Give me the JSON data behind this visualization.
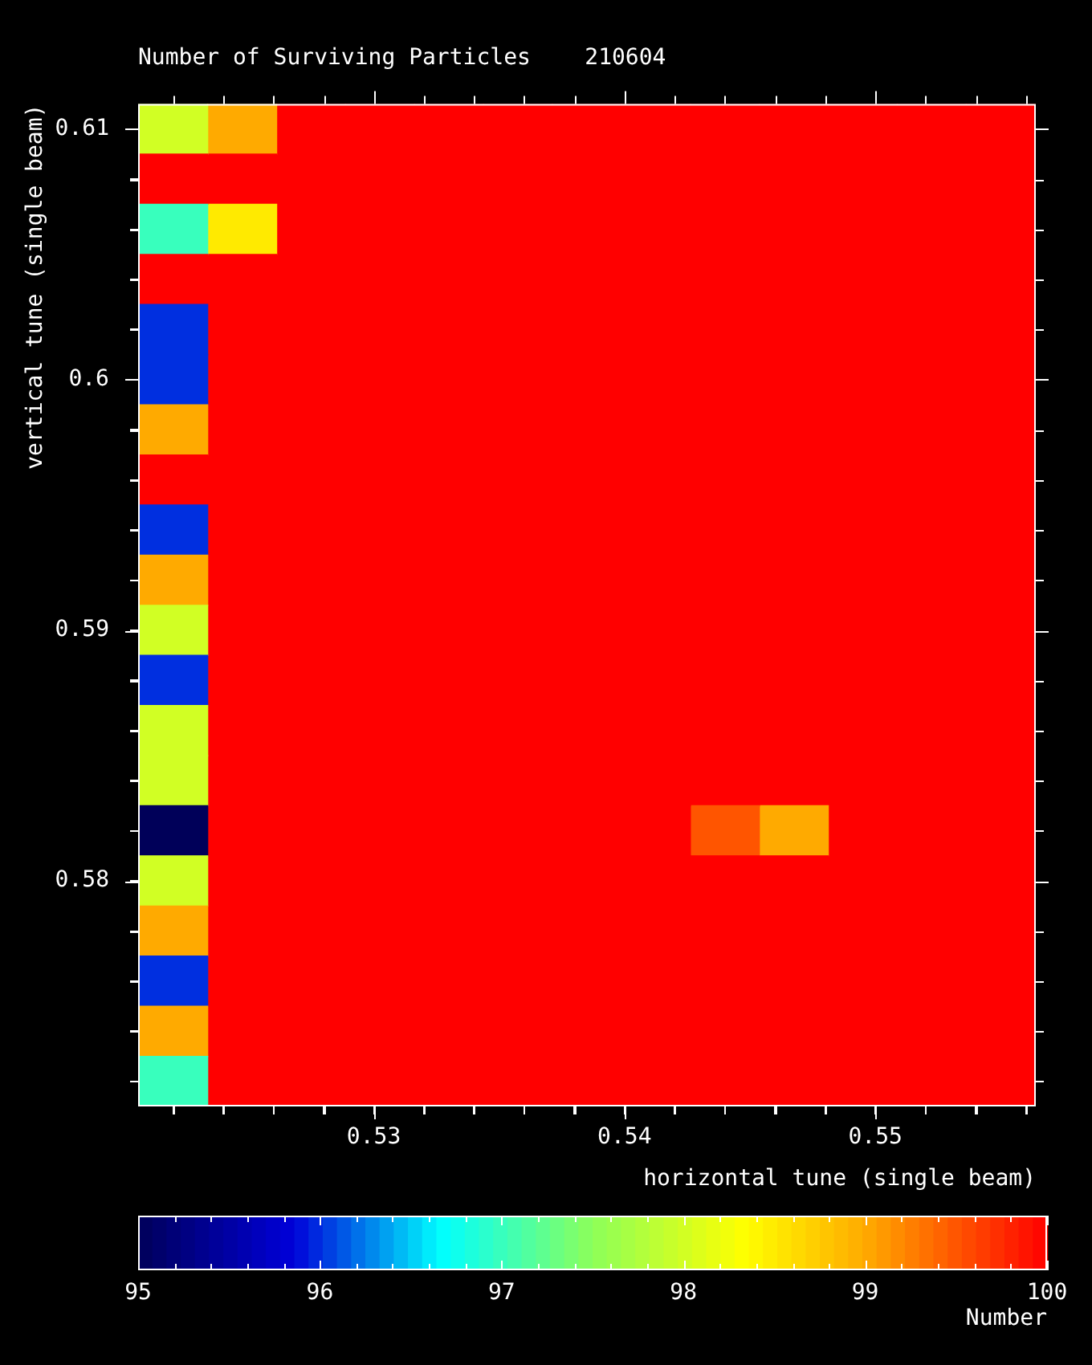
{
  "chart_data": {
    "type": "heatmap",
    "title": "Number of Surviving Particles    210604",
    "xlabel": "horizontal tune (single beam)",
    "ylabel": "vertical tune (single beam)",
    "clabel": "Number",
    "x": [
      0.522,
      0.52475,
      0.5275,
      0.53025,
      0.533,
      0.53575,
      0.5385,
      0.54125,
      0.544,
      0.54675,
      0.5495,
      0.55225,
      0.555
    ],
    "cells": [
      [
        98,
        99,
        100,
        100,
        100,
        100,
        100,
        100,
        100,
        100,
        100,
        100,
        100
      ],
      [
        100,
        100,
        100,
        100,
        100,
        100,
        100,
        100,
        100,
        100,
        100,
        100,
        100
      ],
      [
        97,
        98.5,
        100,
        100,
        100,
        100,
        100,
        100,
        100,
        100,
        100,
        100,
        100
      ],
      [
        100,
        100,
        100,
        100,
        100,
        100,
        100,
        100,
        100,
        100,
        100,
        100,
        100
      ],
      [
        96,
        100,
        100,
        100,
        100,
        100,
        100,
        100,
        100,
        100,
        100,
        100,
        100
      ],
      [
        96,
        100,
        100,
        100,
        100,
        100,
        100,
        100,
        100,
        100,
        100,
        100,
        100
      ],
      [
        99,
        100,
        100,
        100,
        100,
        100,
        100,
        100,
        100,
        100,
        100,
        100,
        100
      ],
      [
        100,
        100,
        100,
        100,
        100,
        100,
        100,
        100,
        100,
        100,
        100,
        100,
        100
      ],
      [
        96,
        100,
        100,
        100,
        100,
        100,
        100,
        100,
        100,
        100,
        100,
        100,
        100
      ],
      [
        99,
        100,
        100,
        100,
        100,
        100,
        100,
        100,
        100,
        100,
        100,
        100,
        100
      ],
      [
        98,
        100,
        100,
        100,
        100,
        100,
        100,
        100,
        100,
        100,
        100,
        100,
        100
      ],
      [
        96,
        100,
        100,
        100,
        100,
        100,
        100,
        100,
        100,
        100,
        100,
        100,
        100
      ],
      [
        98,
        100,
        100,
        100,
        100,
        100,
        100,
        100,
        100,
        100,
        100,
        100,
        100
      ],
      [
        98,
        100,
        100,
        100,
        100,
        100,
        100,
        100,
        100,
        100,
        100,
        100,
        100
      ],
      [
        95,
        100,
        100,
        100,
        100,
        100,
        100,
        100,
        99.5,
        99,
        100,
        100,
        100
      ],
      [
        98,
        100,
        100,
        100,
        100,
        100,
        100,
        100,
        100,
        100,
        100,
        100,
        100
      ],
      [
        99,
        100,
        100,
        100,
        100,
        100,
        100,
        100,
        100,
        100,
        100,
        100,
        100
      ],
      [
        96,
        100,
        100,
        100,
        100,
        100,
        100,
        100,
        100,
        100,
        100,
        100,
        100
      ],
      [
        99,
        100,
        100,
        100,
        100,
        100,
        100,
        100,
        100,
        100,
        100,
        100,
        100
      ],
      [
        97,
        100,
        100,
        100,
        100,
        100,
        100,
        100,
        100,
        100,
        100,
        100,
        100
      ]
    ],
    "xlim": [
      0.5206,
      0.5564
    ],
    "xticks": [
      {
        "value": 0.522,
        "label": null
      },
      {
        "value": 0.524,
        "label": null
      },
      {
        "value": 0.526,
        "label": null
      },
      {
        "value": 0.528,
        "label": null
      },
      0.53,
      {
        "value": 0.532,
        "label": null
      },
      {
        "value": 0.534,
        "label": null
      },
      {
        "value": 0.536,
        "label": null
      },
      {
        "value": 0.538,
        "label": null
      },
      0.54,
      {
        "value": 0.542,
        "label": null
      },
      {
        "value": 0.544,
        "label": null
      },
      {
        "value": 0.546,
        "label": null
      },
      {
        "value": 0.548,
        "label": null
      },
      0.55,
      {
        "value": 0.552,
        "label": null
      },
      {
        "value": 0.554,
        "label": null
      },
      {
        "value": 0.556,
        "label": null
      }
    ],
    "ylim": [
      0.571,
      0.611
    ],
    "yticks": [
      {
        "value": 0.572,
        "label": null
      },
      {
        "value": 0.574,
        "label": null
      },
      {
        "value": 0.576,
        "label": null
      },
      {
        "value": 0.578,
        "label": null
      },
      0.58,
      {
        "value": 0.582,
        "label": null
      },
      {
        "value": 0.584,
        "label": null
      },
      {
        "value": 0.586,
        "label": null
      },
      {
        "value": 0.588,
        "label": null
      },
      0.59,
      {
        "value": 0.592,
        "label": null
      },
      {
        "value": 0.594,
        "label": null
      },
      {
        "value": 0.596,
        "label": null
      },
      {
        "value": 0.598,
        "label": null
      },
      0.6,
      {
        "value": 0.602,
        "label": null
      },
      {
        "value": 0.604,
        "label": null
      },
      {
        "value": 0.606,
        "label": null
      },
      {
        "value": 0.608,
        "label": null
      },
      0.61
    ],
    "clim": [
      95,
      100
    ],
    "cticks": [
      95,
      {
        "value": 95.2,
        "label": null
      },
      {
        "value": 95.4,
        "label": null
      },
      {
        "value": 95.6,
        "label": null
      },
      {
        "value": 95.8,
        "label": null
      },
      96,
      {
        "value": 96.2,
        "label": null
      },
      {
        "value": 96.4,
        "label": null
      },
      {
        "value": 96.6,
        "label": null
      },
      {
        "value": 96.8,
        "label": null
      },
      97,
      {
        "value": 97.2,
        "label": null
      },
      {
        "value": 97.4,
        "label": null
      },
      {
        "value": 97.6,
        "label": null
      },
      {
        "value": 97.8,
        "label": null
      },
      98,
      {
        "value": 98.2,
        "label": null
      },
      {
        "value": 98.4,
        "label": null
      },
      {
        "value": 98.6,
        "label": null
      },
      {
        "value": 98.8,
        "label": null
      },
      99,
      {
        "value": 99.2,
        "label": null
      },
      {
        "value": 99.4,
        "label": null
      },
      {
        "value": 99.6,
        "label": null
      },
      {
        "value": 99.8,
        "label": null
      },
      100
    ]
  }
}
